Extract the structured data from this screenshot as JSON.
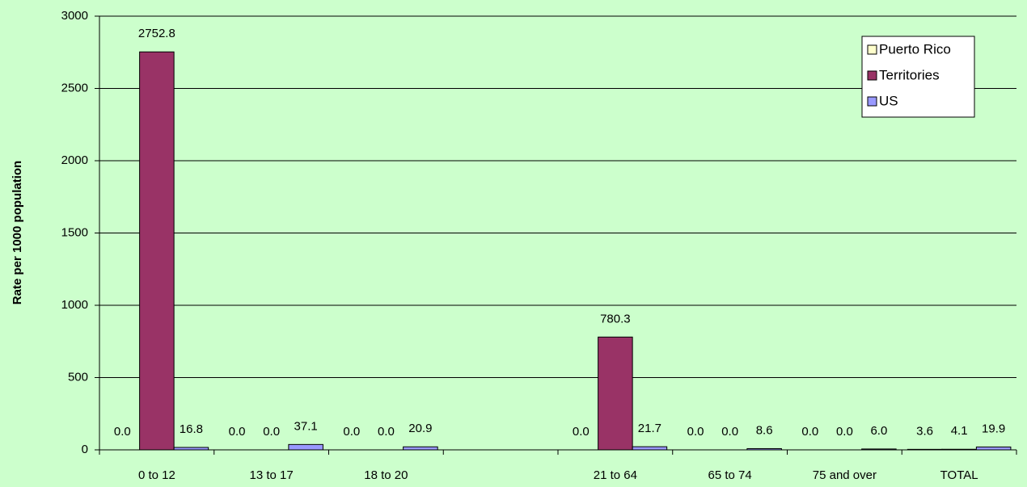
{
  "chart_data": {
    "type": "bar",
    "y_label": "Rate per 1000 population",
    "categories": [
      "0 to 12",
      "13 to 17",
      "18 to 20",
      null,
      "21 to 64",
      "65 to 74",
      "75 and over",
      "TOTAL"
    ],
    "series": [
      {
        "name": "Puerto Rico",
        "color": "#ffffcc",
        "values": [
          0.0,
          0.0,
          0.0,
          null,
          0.0,
          0.0,
          0.0,
          3.6
        ],
        "value_labels": [
          "0.0",
          "0.0",
          "0.0",
          null,
          "0.0",
          "0.0",
          "0.0",
          "3.6"
        ]
      },
      {
        "name": "Territories",
        "color": "#993366",
        "values": [
          2752.8,
          0.0,
          0.0,
          null,
          780.3,
          0.0,
          0.0,
          4.1
        ],
        "value_labels": [
          "2752.8",
          "0.0",
          "0.0",
          null,
          "780.3",
          "0.0",
          "0.0",
          "4.1"
        ]
      },
      {
        "name": "US",
        "color": "#9999ff",
        "values": [
          16.8,
          37.1,
          20.9,
          null,
          21.7,
          8.6,
          6.0,
          19.9
        ],
        "value_labels": [
          "16.8",
          "37.1",
          "20.9",
          null,
          "21.7",
          "8.6",
          "6.0",
          "19.9"
        ]
      }
    ],
    "ylim": [
      0,
      3000
    ],
    "yticks": [
      0,
      500,
      1000,
      1500,
      2000,
      2500,
      3000
    ],
    "grid": true,
    "legend": "top-right"
  }
}
